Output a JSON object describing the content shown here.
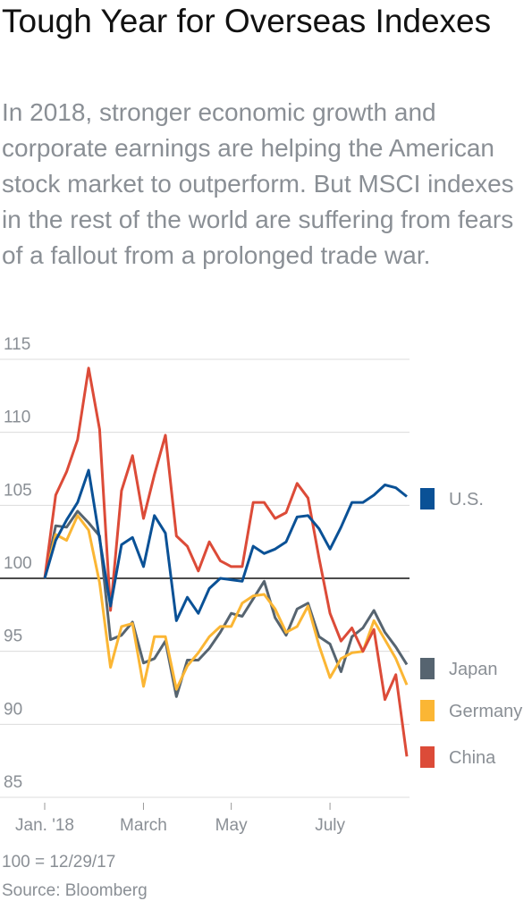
{
  "chart_data": {
    "type": "line",
    "title": "Tough Year for Overseas Indexes",
    "subtitle": "In 2018, stronger economic growth and corporate earnings are helping the American stock market to outperform. But MSCI indexes in the rest of the world are suffering from fears of a fallout from a prolonged trade war.",
    "categories": [
      "Jan. '18",
      null,
      null,
      null,
      null,
      null,
      null,
      null,
      null,
      "March",
      null,
      null,
      null,
      null,
      null,
      null,
      null,
      "May",
      null,
      null,
      null,
      null,
      null,
      null,
      null,
      null,
      "July",
      null,
      null,
      null,
      null,
      null,
      null,
      null
    ],
    "series": [
      {
        "name": "U.S.",
        "color": "#0a5196",
        "values": [
          100,
          102.6,
          104,
          105.2,
          107.4,
          102.7,
          98.1,
          102.3,
          102.8,
          100.8,
          104.3,
          103.1,
          97.1,
          98.7,
          97.6,
          99.3,
          100,
          99.9,
          99.8,
          102.2,
          101.7,
          102,
          102.5,
          104.2,
          104.3,
          103.4,
          102,
          103.5,
          105.2,
          105.2,
          105.7,
          106.4,
          106.2,
          105.6
        ]
      },
      {
        "name": "Japan",
        "color": "#566470",
        "values": [
          100,
          103.6,
          103.5,
          104.6,
          103.8,
          102.9,
          95.8,
          96.1,
          97,
          94.2,
          94.5,
          95.7,
          91.9,
          94.4,
          94.4,
          95.2,
          96.3,
          97.6,
          97.4,
          98.6,
          99.8,
          97.3,
          96.1,
          97.9,
          98.3,
          96,
          95.5,
          93.6,
          96,
          96.6,
          97.8,
          96.3,
          95.3,
          94.1
        ]
      },
      {
        "name": "Germany",
        "color": "#fbb634",
        "values": [
          100,
          103,
          102.6,
          104.3,
          103.3,
          99.7,
          93.9,
          96.7,
          96.9,
          92.6,
          96,
          96,
          92.4,
          94,
          94.9,
          96,
          96.7,
          96.7,
          98.3,
          98.8,
          98.9,
          97.9,
          96.3,
          96.7,
          98.1,
          95.4,
          93.2,
          94.5,
          94.9,
          95,
          97.1,
          95.8,
          94.5,
          92.7
        ]
      },
      {
        "name": "China",
        "color": "#dc4b38",
        "values": [
          100,
          105.7,
          107.3,
          109.5,
          114.4,
          110.2,
          97.8,
          106,
          108.4,
          104.1,
          107.1,
          109.8,
          102.9,
          102.2,
          100.5,
          102.5,
          101.2,
          100.8,
          100.8,
          105.2,
          105.2,
          104.1,
          104.5,
          106.5,
          105.5,
          101.4,
          97.6,
          95.7,
          96.6,
          95,
          96.5,
          91.7,
          93.4,
          87.8
        ]
      }
    ],
    "ylim": [
      85,
      115
    ],
    "yticks": [
      85,
      90,
      95,
      100,
      105,
      110,
      115
    ],
    "grid": true,
    "baseline": 100,
    "note": "100 = 12/29/17",
    "source": "Source: Bloomberg"
  }
}
